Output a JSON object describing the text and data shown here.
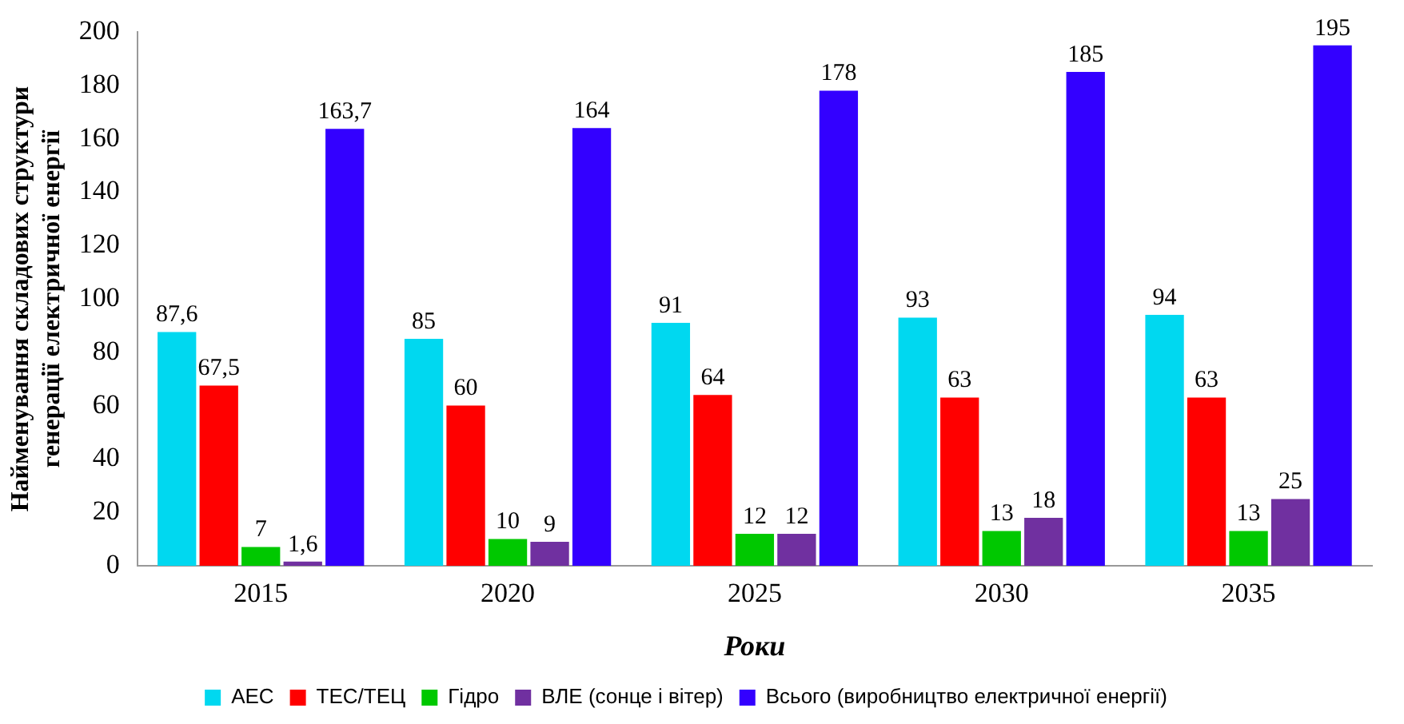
{
  "chart_data": {
    "type": "bar",
    "ylabel": "Найменування складових структури генерації електричної енергії",
    "xlabel": "Роки",
    "categories": [
      "2015",
      "2020",
      "2025",
      "2030",
      "2035"
    ],
    "series": [
      {
        "name": "АЕС",
        "color": "#00d8f0",
        "values": [
          87.6,
          85,
          91,
          93,
          94
        ],
        "value_labels": [
          "87,6",
          "85",
          "91",
          "93",
          "94"
        ]
      },
      {
        "name": "ТЕС/ТЕЦ",
        "color": "#ff0000",
        "values": [
          67.5,
          60,
          64,
          63,
          63
        ],
        "value_labels": [
          "67,5",
          "60",
          "64",
          "63",
          "63"
        ]
      },
      {
        "name": "Гідро",
        "color": "#00c800",
        "values": [
          7,
          10,
          12,
          13,
          13
        ],
        "value_labels": [
          "7",
          "10",
          "12",
          "13",
          "13"
        ]
      },
      {
        "name": "ВЛЕ (сонце і вітер)",
        "color": "#7030a0",
        "values": [
          1.6,
          9,
          12,
          18,
          25
        ],
        "value_labels": [
          "1,6",
          "9",
          "12",
          "18",
          "25"
        ]
      },
      {
        "name": "Всього (виробництво електричної енергії)",
        "color": "#3300ff",
        "values": [
          163.7,
          164,
          178,
          185,
          195
        ],
        "value_labels": [
          "163,7",
          "164",
          "178",
          "185",
          "195"
        ]
      }
    ],
    "ylim": [
      0,
      200
    ],
    "yticks": [
      0,
      20,
      40,
      60,
      80,
      100,
      120,
      140,
      160,
      180,
      200
    ],
    "grid": false,
    "legend": "bottom"
  }
}
